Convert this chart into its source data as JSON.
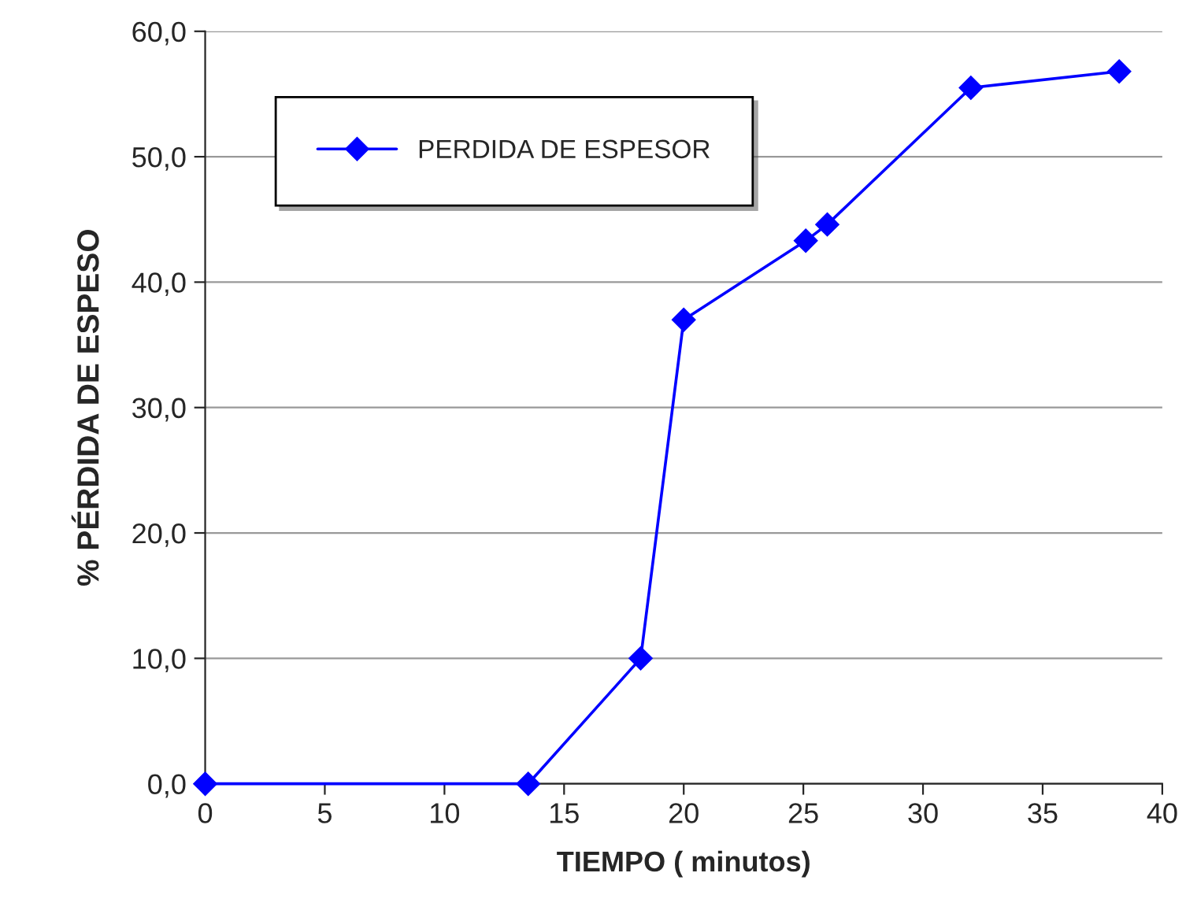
{
  "chart_data": {
    "type": "line",
    "xlabel": "TIEMPO ( minutos)",
    "ylabel": "% PÉRDIDA DE ESPESO",
    "x": [
      0,
      13.5,
      18.2,
      20,
      25.1,
      26,
      32,
      38.2
    ],
    "series": [
      {
        "name": "PERDIDA DE ESPESOR",
        "color": "#0000ff",
        "values": [
          0,
          0,
          10,
          37,
          43.3,
          44.6,
          55.5,
          56.8
        ]
      }
    ],
    "xlim": [
      0,
      40
    ],
    "xticks": [
      0,
      5,
      10,
      15,
      20,
      25,
      30,
      35,
      40
    ],
    "ylim": [
      0,
      60
    ],
    "yticks": [
      {
        "value": 0,
        "label": "0,0"
      },
      {
        "value": 10,
        "label": "10,0"
      },
      {
        "value": 20,
        "label": "20,0"
      },
      {
        "value": 30,
        "label": "30,0"
      },
      {
        "value": 40,
        "label": "40,0"
      },
      {
        "value": 50,
        "label": "50,0"
      },
      {
        "value": 60,
        "label": "60,0"
      }
    ],
    "grid": "y",
    "legend": "top left",
    "marker": "diamond",
    "line_style": "solid"
  }
}
